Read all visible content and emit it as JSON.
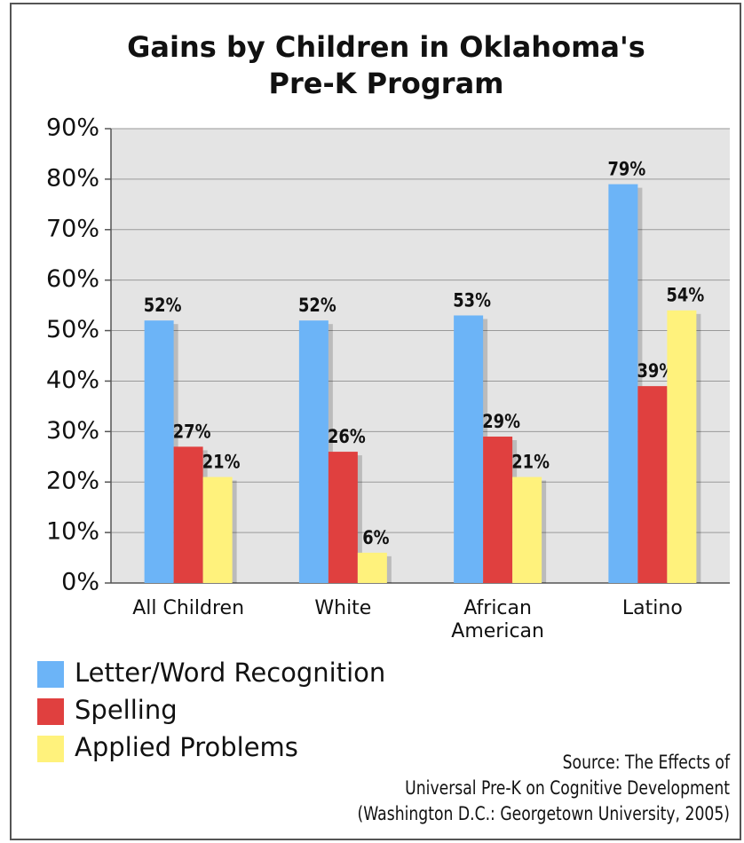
{
  "chart_data": {
    "type": "bar",
    "title": [
      "Gains by Children in Oklahoma's",
      "Pre-K Program"
    ],
    "categories": [
      "All Children",
      "White",
      "African American",
      "Latino"
    ],
    "series": [
      {
        "name": "Letter/Word Recognition",
        "color": "#6cb4f7",
        "values": [
          52,
          52,
          53,
          79
        ],
        "value_labels": [
          "52%",
          "52%",
          "53%",
          "79%"
        ]
      },
      {
        "name": "Spelling",
        "color": "#e0403f",
        "values": [
          27,
          26,
          29,
          39
        ],
        "value_labels": [
          "27%",
          "26%",
          "29%",
          "39%"
        ]
      },
      {
        "name": "Applied Problems",
        "color": "#fff27c",
        "values": [
          21,
          6,
          21,
          54
        ],
        "value_labels": [
          "21%",
          "6%",
          "21%",
          "54%"
        ]
      }
    ],
    "ylim": [
      0,
      90
    ],
    "yticks": [
      {
        "value": 0,
        "label": "0%"
      },
      {
        "value": 10,
        "label": "10%"
      },
      {
        "value": 20,
        "label": "20%"
      },
      {
        "value": 30,
        "label": "30%"
      },
      {
        "value": 40,
        "label": "40%"
      },
      {
        "value": 50,
        "label": "50%"
      },
      {
        "value": 60,
        "label": "60%"
      },
      {
        "value": 70,
        "label": "70%"
      },
      {
        "value": 80,
        "label": "80%"
      },
      {
        "value": 90,
        "label": "90%"
      }
    ],
    "grid": true,
    "source": [
      "Source: The Effects of",
      "Universal Pre-K on Cognitive Development",
      "(Washington D.C.: Georgetown University, 2005)"
    ]
  }
}
